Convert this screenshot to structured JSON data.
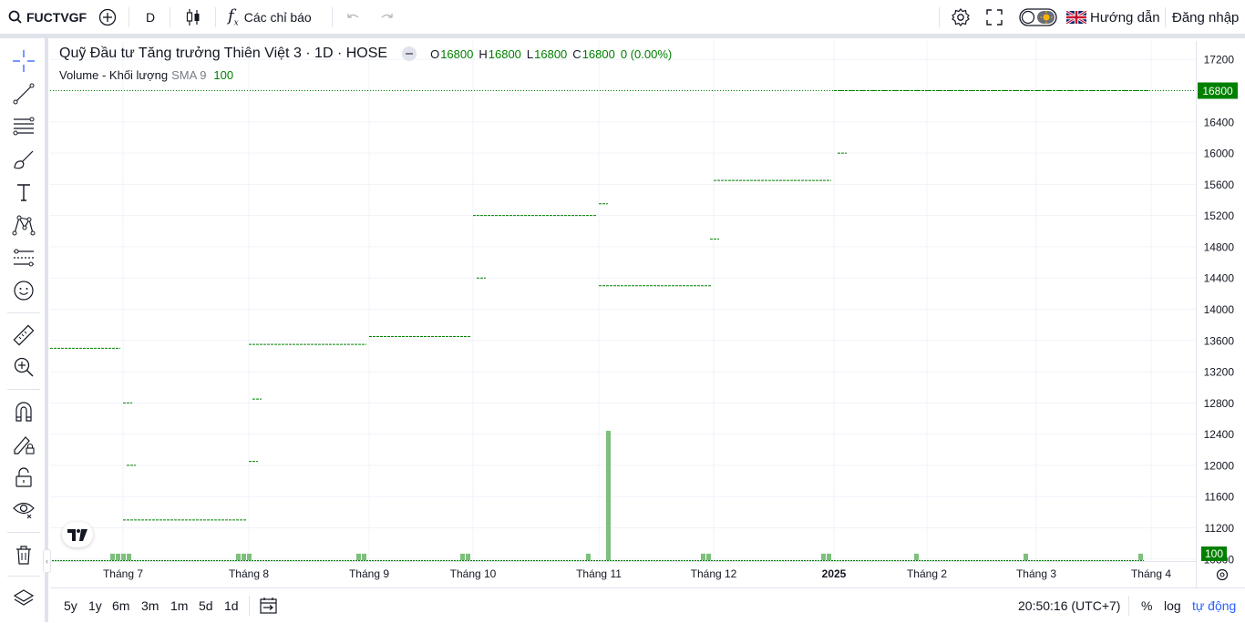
{
  "topbar": {
    "symbol": "FUCTVGF",
    "interval": "D",
    "indicators_label": "Các chỉ báo",
    "guide_label": "Hướng dẫn",
    "login_label": "Đăng nhập"
  },
  "legend": {
    "title": "Quỹ Đầu tư Tăng trưởng Thiên Việt 3 · 1D · HOSE",
    "o_label": "O",
    "o_value": "16800",
    "h_label": "H",
    "h_value": "16800",
    "l_label": "L",
    "l_value": "16800",
    "c_label": "C",
    "c_value": "16800",
    "change": "0 (0.00%)",
    "volume_label": "Volume - Khối lượng",
    "sma_label": "SMA 9",
    "sma_value": "100"
  },
  "chart_data": {
    "type": "line",
    "y_ticks": [
      17200,
      16800,
      16400,
      16000,
      15600,
      15200,
      14800,
      14400,
      14000,
      13600,
      13200,
      12800,
      12400,
      12000,
      11600,
      11200,
      10800
    ],
    "ylim": [
      10750,
      17250
    ],
    "x_tick_labels": [
      "Tháng 7",
      "Tháng 8",
      "Tháng 9",
      "Tháng 10",
      "Tháng 11",
      "Tháng 12",
      "2025",
      "Tháng 2",
      "Tháng 3",
      "Tháng 4"
    ],
    "last_price_label": "16800",
    "volume_label": "100",
    "price_segments": [
      {
        "from": "Tháng 6",
        "to": "Tháng 7",
        "price": 13500
      },
      {
        "from": "Tháng 7",
        "to": "Tháng 7",
        "price": 12800
      },
      {
        "from": "Tháng 7",
        "to": "Tháng 7",
        "price": 12000
      },
      {
        "from": "Tháng 7",
        "to": "Tháng 8",
        "price": 11300
      },
      {
        "from": "Tháng 8",
        "to": "Tháng 8",
        "price": 12050
      },
      {
        "from": "Tháng 8",
        "to": "Tháng 8",
        "price": 12850
      },
      {
        "from": "Tháng 8",
        "to": "Tháng 9",
        "price": 13550
      },
      {
        "from": "Tháng 9",
        "to": "Tháng 10",
        "price": 13650
      },
      {
        "from": "Tháng 10",
        "to": "Tháng 10",
        "price": 14400
      },
      {
        "from": "Tháng 10",
        "to": "Tháng 11",
        "price": 15200
      },
      {
        "from": "Tháng 11",
        "to": "Tháng 11",
        "price": 15350
      },
      {
        "from": "Tháng 11",
        "to": "Tháng 12",
        "price": 14300
      },
      {
        "from": "Tháng 12",
        "to": "Tháng 12",
        "price": 14900
      },
      {
        "from": "Tháng 12",
        "to": "2025",
        "price": 15650
      },
      {
        "from": "2025",
        "to": "2025",
        "price": 16000
      },
      {
        "from": "2025",
        "to": "Tháng 4",
        "price": 16800
      }
    ],
    "volume_bars": [
      {
        "near": "Tháng 7",
        "value": 1
      },
      {
        "near": "Tháng 7",
        "value": 1
      },
      {
        "near": "Tháng 7",
        "value": 1
      },
      {
        "near": "Tháng 7",
        "value": 1
      },
      {
        "near": "Tháng 8",
        "value": 1
      },
      {
        "near": "Tháng 8",
        "value": 1
      },
      {
        "near": "Tháng 8",
        "value": 1
      },
      {
        "near": "Tháng 9",
        "value": 1
      },
      {
        "near": "Tháng 9",
        "value": 1
      },
      {
        "near": "Tháng 10",
        "value": 1
      },
      {
        "near": "Tháng 10",
        "value": 1
      },
      {
        "near": "Tháng 11",
        "value": 1
      },
      {
        "near": "Tháng 11",
        "value": 20
      },
      {
        "near": "Tháng 12",
        "value": 1
      },
      {
        "near": "Tháng 12",
        "value": 1
      },
      {
        "near": "2025",
        "value": 1
      },
      {
        "near": "2025",
        "value": 1
      },
      {
        "near": "Tháng 2",
        "value": 1
      },
      {
        "near": "Tháng 3",
        "value": 1
      },
      {
        "near": "Tháng 4",
        "value": 1
      }
    ],
    "grid": true,
    "line_color": "#008000",
    "volume_color": "#7dbf7d"
  },
  "bottombar": {
    "ranges": [
      "5y",
      "1y",
      "6m",
      "3m",
      "1m",
      "5d",
      "1d"
    ],
    "clock": "20:50:16 (UTC+7)",
    "percent": "%",
    "log": "log",
    "auto": "tự động"
  },
  "colors": {
    "accent": "#2962ff",
    "price_green": "#008000",
    "grid": "#f0f3fa"
  }
}
